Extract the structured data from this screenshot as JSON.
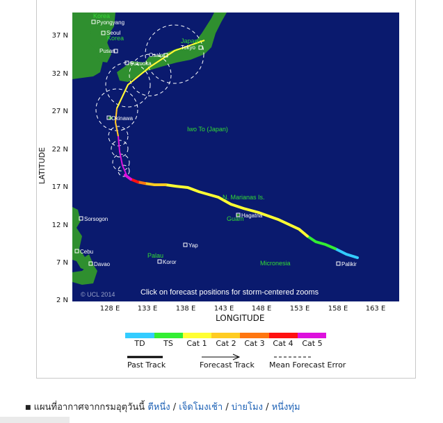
{
  "map": {
    "lat_ticks": [
      "37 N",
      "32 N",
      "27 N",
      "22 N",
      "17 N",
      "12 N",
      "7 N",
      "2 N"
    ],
    "lon_ticks": [
      "128 E",
      "133 E",
      "138 E",
      "143 E",
      "148 E",
      "153 E",
      "158 E",
      "163 E"
    ],
    "x_title": "LONGITUDE",
    "y_title": "LATITUDE",
    "copyright": "© UCL 2014",
    "click_note": "Click on forecast positions for storm-centered zooms",
    "places": {
      "pyongyang": "Pyongyang",
      "korea_north": "Korea",
      "seoul": "Seoul",
      "korea_south": "Korea",
      "pusan": "Pusan",
      "fukuoka": "Fukuoka",
      "osaka": "Osaka",
      "japan": "Japan",
      "tokyo": "Tokyo",
      "okinawa": "Okinawa",
      "iwo_to": "Iwo To (Japan)",
      "marianas": "N. Marianas Is.",
      "hagatna": "Hagatna",
      "guam": "Guam",
      "sorsogon": "Sorsogon",
      "cebu": "Cebu",
      "yap": "Yap",
      "palau": "Palau",
      "koror": "Koror",
      "davao": "Davao",
      "micronesia": "Micronesia",
      "palikir": "Palikir"
    }
  },
  "legend": {
    "categories": [
      {
        "label": "TD",
        "color": "#33ccff"
      },
      {
        "label": "TS",
        "color": "#33ee33"
      },
      {
        "label": "Cat 1",
        "color": "#ffff33"
      },
      {
        "label": "Cat 2",
        "color": "#ffcc22"
      },
      {
        "label": "Cat 3",
        "color": "#ff7711"
      },
      {
        "label": "Cat 4",
        "color": "#ff1111"
      },
      {
        "label": "Cat 5",
        "color": "#dd11dd"
      }
    ],
    "past_track": "Past Track",
    "forecast_track": "Forecast Track",
    "mean_error": "Mean Forecast Error"
  },
  "colors": {
    "ocean": "#0a1a6e",
    "land": "#2f8f2f",
    "land_label": "#33dd33"
  },
  "footer": {
    "prefix": "แผนที่อากาศจากกรมอุตุวันนี้",
    "links": [
      "ตีหนึ่ง",
      "เจ็ดโมงเช้า",
      "บ่ายโมง",
      "หนึ่งทุ่ม"
    ],
    "separator": " / "
  }
}
